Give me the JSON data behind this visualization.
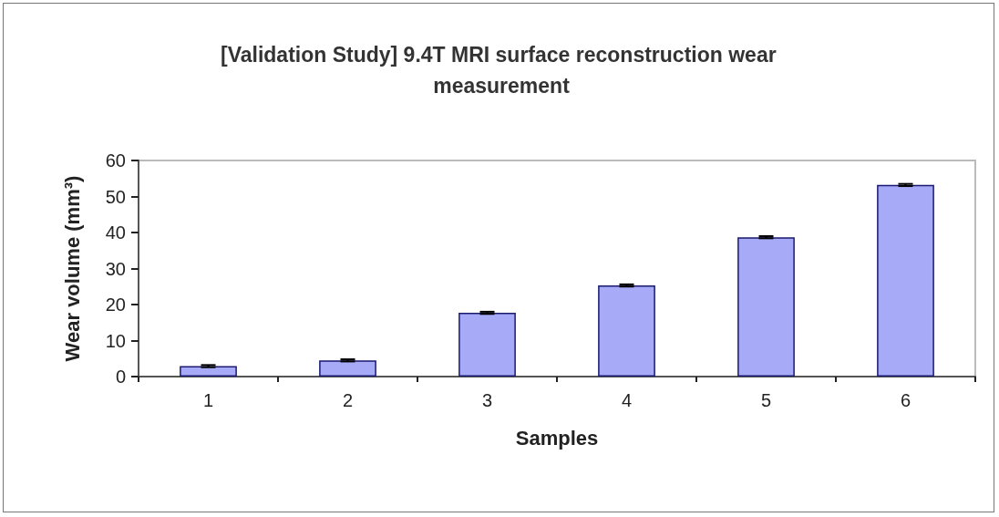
{
  "chart_data": {
    "type": "bar",
    "title": "[Validation Study] 9.4T MRI surface reconstruction wear measurement",
    "xlabel": "Samples",
    "ylabel": "Wear volume (mm³)",
    "categories": [
      "1",
      "2",
      "3",
      "4",
      "5",
      "6"
    ],
    "values": [
      2.9,
      4.5,
      17.7,
      25.3,
      38.7,
      53.2
    ],
    "errors": [
      0.3,
      0.3,
      0.3,
      0.3,
      0.3,
      0.3
    ],
    "color": "#a6aaf7",
    "ylim": [
      0,
      60
    ],
    "yticks": [
      0,
      10,
      20,
      30,
      40,
      50,
      60
    ],
    "grid": false
  }
}
